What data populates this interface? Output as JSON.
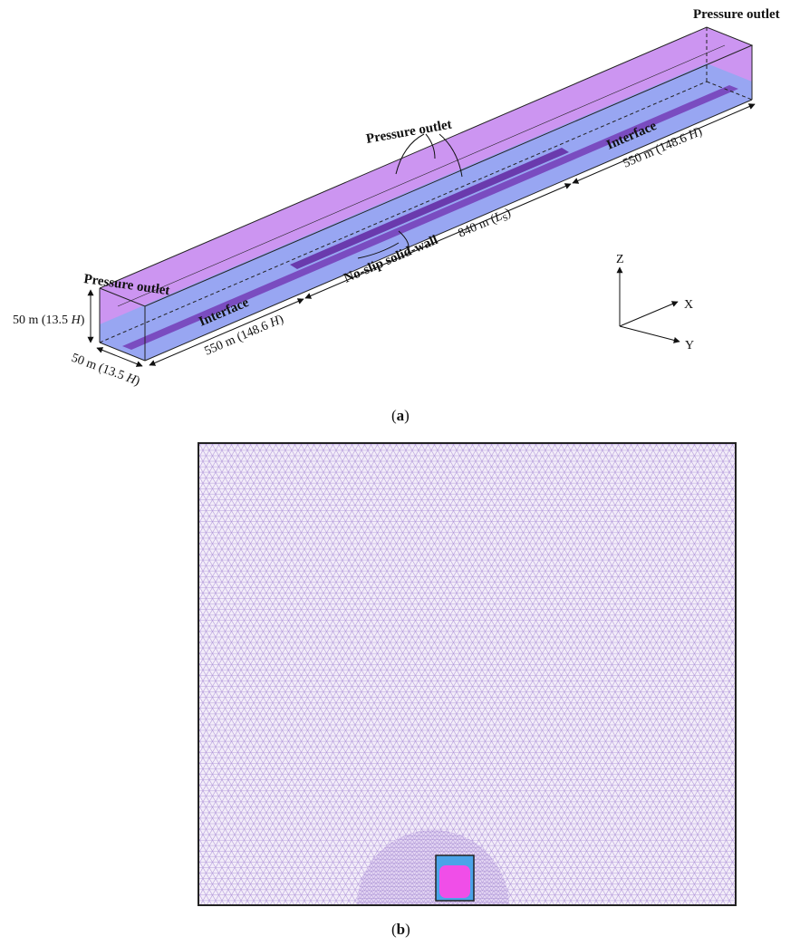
{
  "panel_a": {
    "outlet_far": "Pressure outlet",
    "outlet_top": "Pressure outlet",
    "outlet_near": "Pressure outlet",
    "interface_near": "Interface",
    "interface_far": "Interface",
    "length_near": {
      "main": "550 m (148.6 ",
      "italic": "H",
      "end": ")"
    },
    "length_far": {
      "main": "550 m (148.6 ",
      "italic": "H",
      "end": ")"
    },
    "length_road": {
      "main": "840 m (",
      "italic": "L",
      "sub": "S",
      "end": ")"
    },
    "wall": "No-slip solid-wall",
    "height": {
      "main": "50 m (13.5 ",
      "italic": "H",
      "end": ")"
    },
    "width": {
      "main": "50 m (13.5 ",
      "italic": "H",
      "end": ")"
    },
    "axis_z": "Z",
    "axis_x": "X",
    "axis_y": "Y",
    "caption": {
      "open": "(",
      "letter": "a",
      "close": ")"
    }
  },
  "panel_b": {
    "caption": {
      "open": "(",
      "letter": "b",
      "close": ")"
    }
  }
}
